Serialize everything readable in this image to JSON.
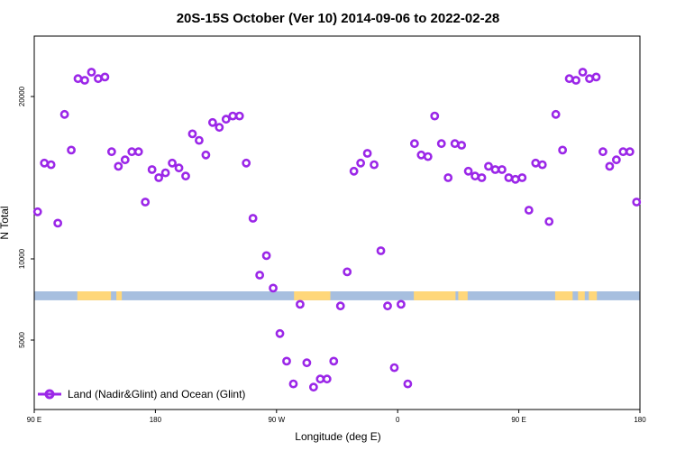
{
  "chart_data": {
    "type": "scatter",
    "title": "20S-15S October (Ver 10)   2014-09-06 to 2022-02-28",
    "xlabel": "Longitude (deg E)",
    "ylabel": "N Total",
    "xlim": [
      90,
      540
    ],
    "ylim": [
      1500,
      23000
    ],
    "x_ticks": [
      {
        "value": 90,
        "label": "90 E"
      },
      {
        "value": 180,
        "label": "180"
      },
      {
        "value": 270,
        "label": "90 W"
      },
      {
        "value": 360,
        "label": "0"
      },
      {
        "value": 450,
        "label": "90 E"
      },
      {
        "value": 540,
        "label": "180"
      }
    ],
    "y_ticks": [
      {
        "value": 5000,
        "label": "5000"
      },
      {
        "value": 10000,
        "label": "10000"
      },
      {
        "value": 20000,
        "label": "20000"
      }
    ],
    "grid": false,
    "legend_position": "bottom-left",
    "land_mask": {
      "y_range": [
        7450,
        8000
      ],
      "ocean_color": "#a7bfdf",
      "land_color": "#ffd77a",
      "land_segments": [
        [
          122,
          147
        ],
        [
          151,
          155
        ],
        [
          153,
          155
        ],
        [
          283,
          310
        ],
        [
          372,
          403
        ],
        [
          405,
          412
        ],
        [
          477,
          490
        ],
        [
          494,
          499
        ],
        [
          502,
          508
        ]
      ]
    },
    "series": [
      {
        "name": "Land (Nadir&Glint) and Ocean (Glint)",
        "color": "#9b27e8",
        "x": [
          92.5,
          97.5,
          102.5,
          107.5,
          112.5,
          117.5,
          122.5,
          127.5,
          132.5,
          137.5,
          142.5,
          147.5,
          152.5,
          157.5,
          162.5,
          167.5,
          172.5,
          177.5,
          182.5,
          187.5,
          192.5,
          197.5,
          202.5,
          207.5,
          212.5,
          217.5,
          222.5,
          227.5,
          232.5,
          237.5,
          242.5,
          247.5,
          252.5,
          257.5,
          262.5,
          267.5,
          272.5,
          277.5,
          282.5,
          287.5,
          292.5,
          297.5,
          302.5,
          307.5,
          312.5,
          317.5,
          322.5,
          327.5,
          332.5,
          337.5,
          342.5,
          347.5,
          352.5,
          357.5,
          362.5,
          367.5,
          372.5,
          377.5,
          382.5,
          387.5,
          392.5,
          397.5,
          402.5,
          407.5,
          412.5,
          417.5,
          422.5,
          427.5,
          432.5,
          437.5,
          442.5,
          447.5,
          452.5,
          457.5,
          462.5,
          467.5,
          472.5,
          477.5,
          482.5,
          487.5,
          492.5,
          497.5,
          502.5,
          507.5,
          512.5,
          517.5,
          522.5,
          527.5,
          532.5,
          537.5
        ],
        "y": [
          12900,
          15900,
          15800,
          12200,
          18900,
          16700,
          21100,
          21000,
          21500,
          21100,
          21200,
          16600,
          15700,
          16100,
          16600,
          16600,
          13500,
          15500,
          15000,
          15300,
          15900,
          15600,
          15100,
          17700,
          17300,
          16400,
          18400,
          18100,
          18600,
          18800,
          18800,
          15900,
          12500,
          9000,
          10200,
          8200,
          5400,
          3700,
          2300,
          7200,
          3600,
          2100,
          2600,
          2600,
          3700,
          7100,
          9200,
          15400,
          15900,
          16500,
          15800,
          10500,
          7100,
          3300,
          7200,
          2300,
          17100,
          16400,
          16300,
          18800,
          17100,
          15000,
          17100,
          17000,
          15400,
          15100,
          15000,
          15700,
          15500,
          15500,
          15000,
          14900,
          15000,
          13000,
          15900,
          15800,
          12300,
          18900,
          16700,
          21100,
          21000,
          21500,
          21100,
          21200,
          16600,
          15700,
          16100,
          16600,
          16600,
          13500
        ]
      }
    ]
  }
}
